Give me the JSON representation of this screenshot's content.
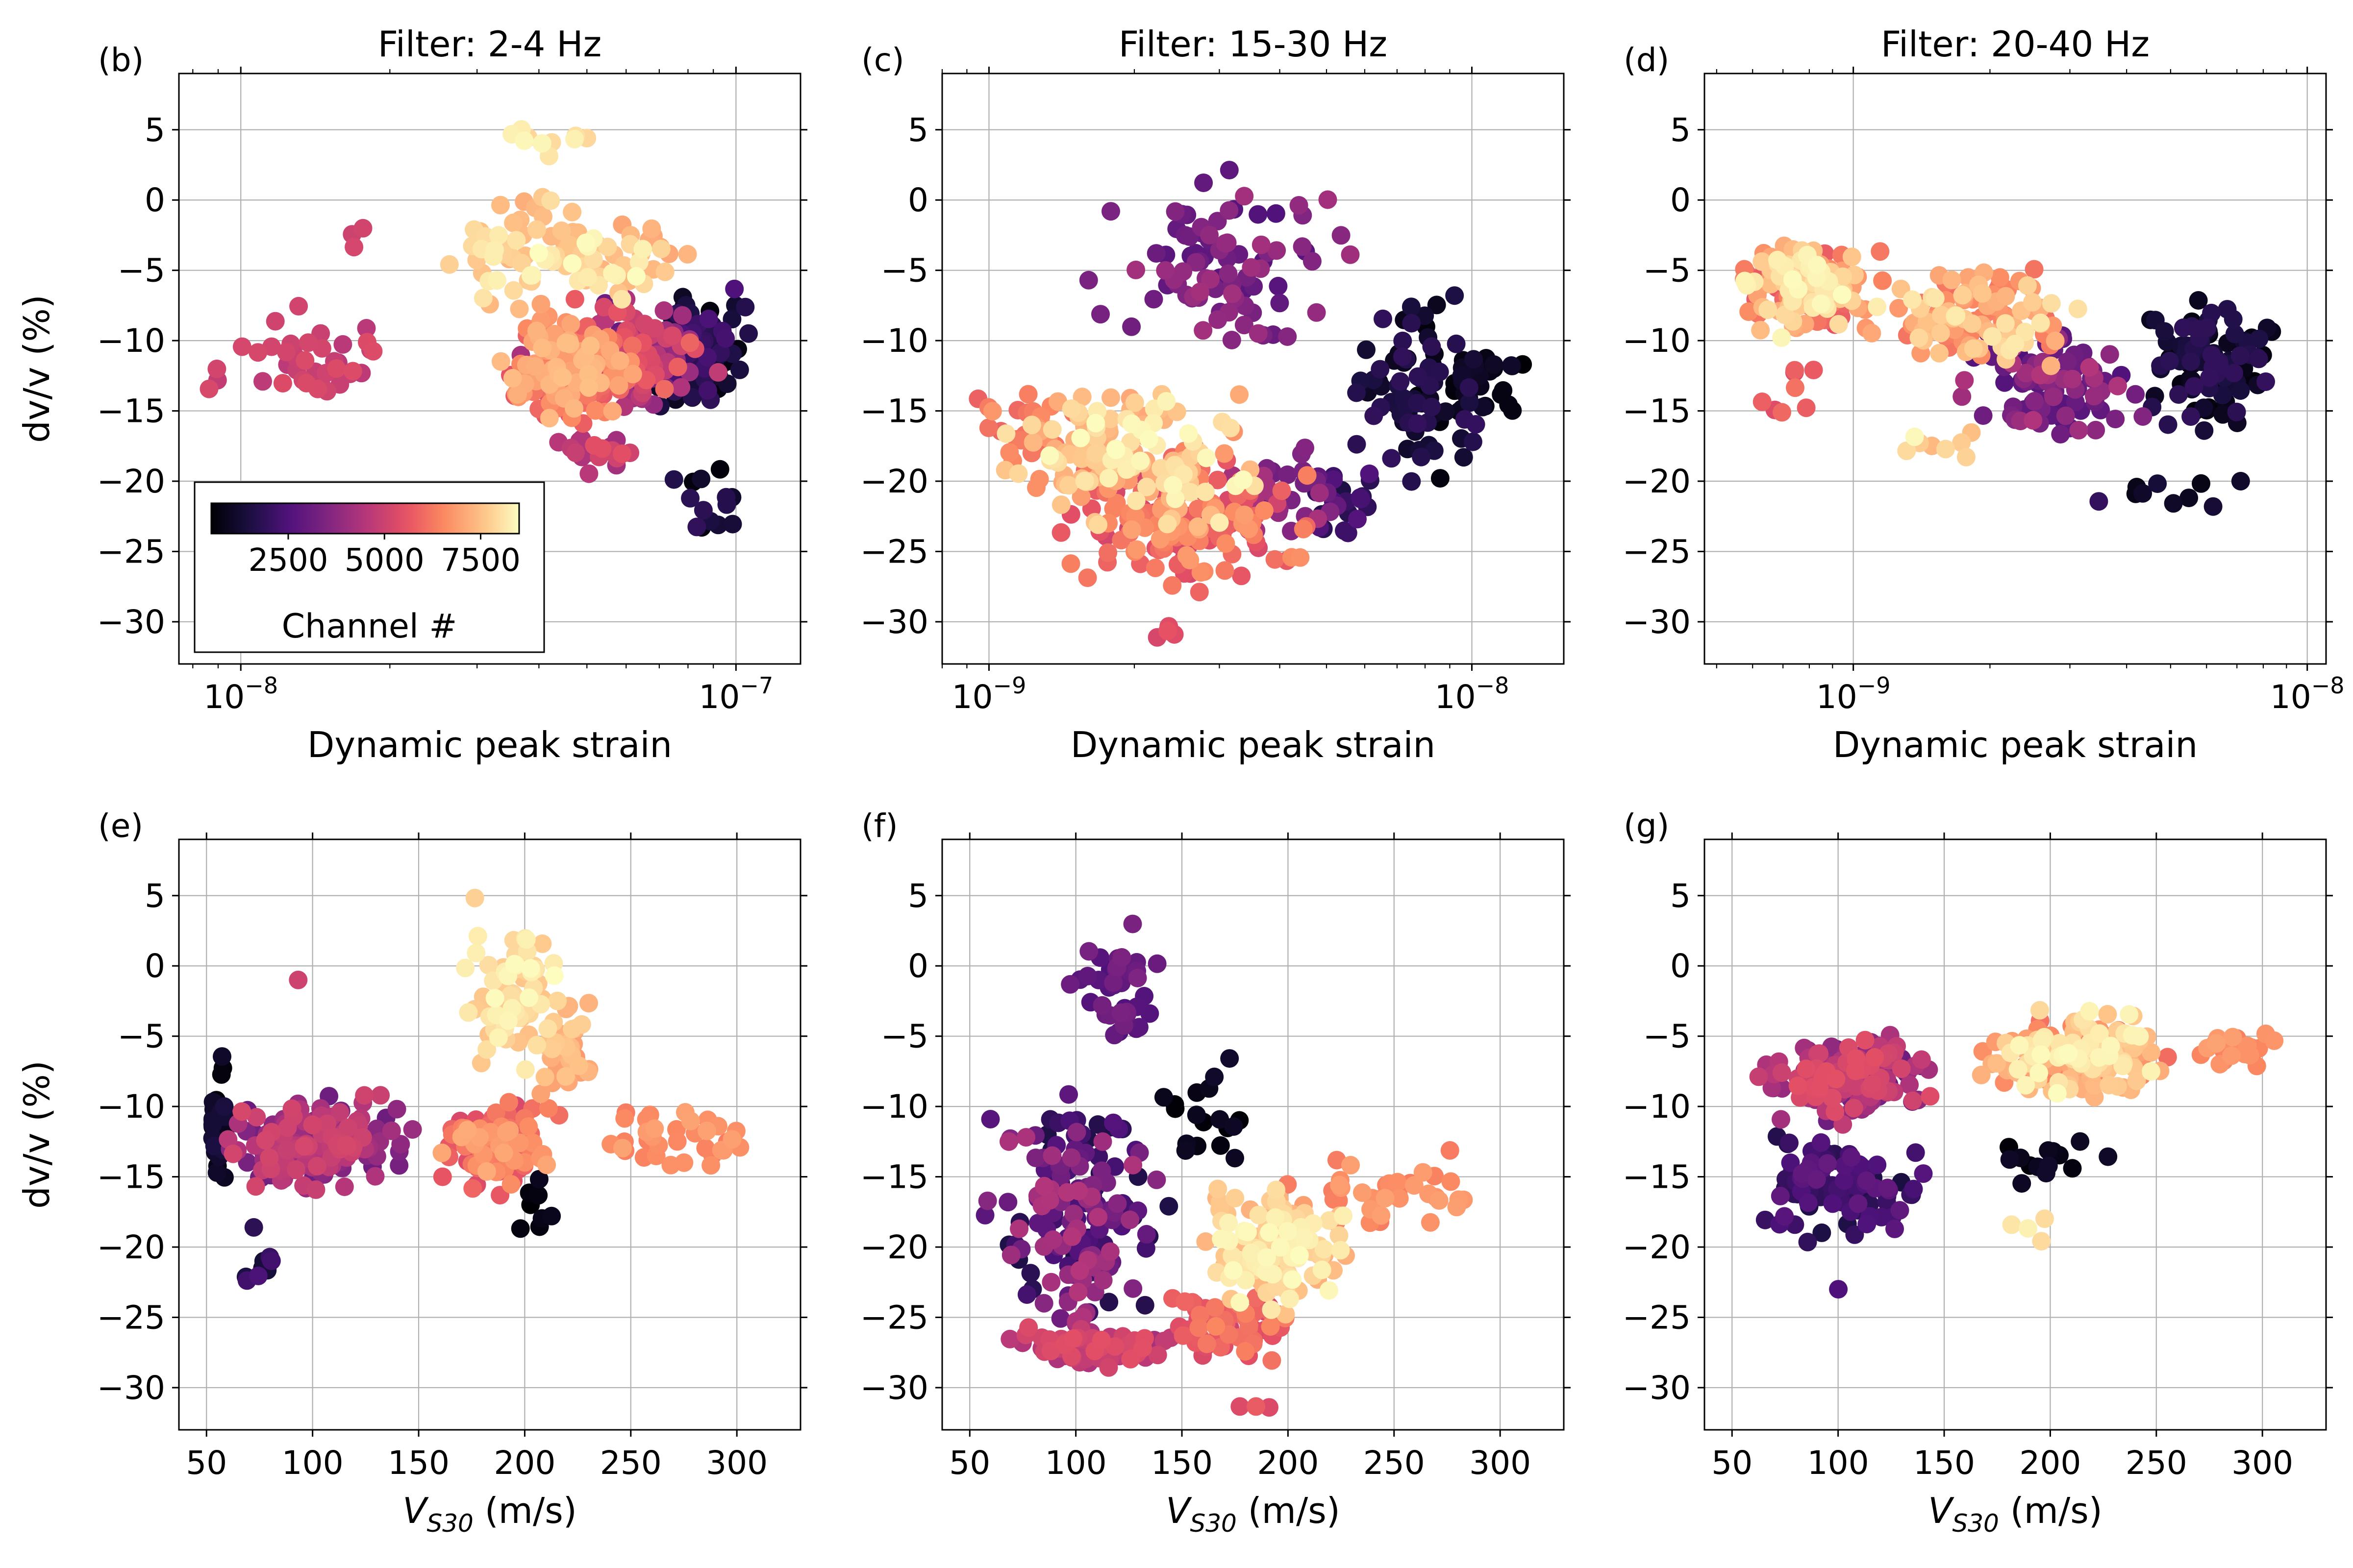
{
  "chart_data": [
    {
      "panel": "(b)",
      "title": "Filter: 2-4 Hz",
      "type": "scatter",
      "xlabel": "Dynamic peak strain",
      "ylabel": "dv/v (%)",
      "xscale": "log",
      "xlim": [
        7.5e-09,
        1.35e-07
      ],
      "ylim": [
        -33,
        9
      ],
      "xticks": [
        1e-08,
        1e-07
      ],
      "xtick_labels": [
        "10",
        "10"
      ],
      "xtick_exponents": [
        "−8",
        "−7"
      ],
      "yticks": [
        5,
        0,
        -5,
        -10,
        -15,
        -20,
        -25,
        -30
      ],
      "ytick_labels": [
        "5",
        "0",
        "−5",
        "−10",
        "−15",
        "−20",
        "−25",
        "−30"
      ],
      "grid": true,
      "colorbar": {
        "cmap": "magma",
        "range": [
          500,
          8500
        ],
        "ticks": [
          2500,
          5000,
          7500
        ],
        "tick_labels": [
          "2500",
          "5000",
          "7500"
        ],
        "label": "Channel #",
        "placement": "lower-left inset"
      },
      "clusters": [
        {
          "x": [
            3.5e-08,
            1e-07
          ],
          "y": [
            -16,
            -6
          ],
          "c": [
            3000,
            6000
          ],
          "n": 160
        },
        {
          "x": [
            3e-08,
            7e-08
          ],
          "y": [
            -17,
            -7
          ],
          "c": [
            5500,
            7500
          ],
          "n": 170
        },
        {
          "x": [
            6e-08,
            1.15e-07
          ],
          "y": [
            -16,
            -5
          ],
          "c": [
            500,
            2500
          ],
          "n": 110
        },
        {
          "x": [
            7e-08,
            1.1e-07
          ],
          "y": [
            -25,
            -16
          ],
          "c": [
            500,
            2000
          ],
          "n": 14
        },
        {
          "x": [
            3e-08,
            1e-07
          ],
          "y": [
            -8,
            0
          ],
          "c": [
            7000,
            8500
          ],
          "n": 50
        },
        {
          "x": [
            2e-08,
            6e-08
          ],
          "y": [
            -8,
            1
          ],
          "c": [
            7200,
            8400
          ],
          "n": 45
        },
        {
          "x": [
            2.5e-08,
            7e-08
          ],
          "y": [
            2,
            7
          ],
          "c": [
            7800,
            8500
          ],
          "n": 10
        },
        {
          "x": [
            8e-09,
            2.5e-08
          ],
          "y": [
            -16,
            -7
          ],
          "c": [
            4600,
            5400
          ],
          "n": 40
        },
        {
          "x": [
            1.6e-08,
            1.8e-08
          ],
          "y": [
            -5,
            0
          ],
          "c": [
            4800,
            5200
          ],
          "n": 3
        },
        {
          "x": [
            4e-08,
            7e-08
          ],
          "y": [
            -20,
            -15
          ],
          "c": [
            4000,
            5500
          ],
          "n": 18
        }
      ]
    },
    {
      "panel": "(c)",
      "title": "Filter: 15-30 Hz",
      "type": "scatter",
      "xlabel": "Dynamic peak strain",
      "ylabel": "",
      "xscale": "log",
      "xlim": [
        8e-10,
        1.55e-08
      ],
      "ylim": [
        -33,
        9
      ],
      "xticks": [
        1e-09,
        1e-08
      ],
      "xtick_labels": [
        "10",
        "10"
      ],
      "xtick_exponents": [
        "−9",
        "−8"
      ],
      "yticks": [
        5,
        0,
        -5,
        -10,
        -15,
        -20,
        -25,
        -30
      ],
      "ytick_labels": [
        "5",
        "0",
        "−5",
        "−10",
        "−15",
        "−20",
        "−25",
        "−30"
      ],
      "grid": true,
      "clusters": [
        {
          "x": [
            1.2e-09,
            5.5e-09
          ],
          "y": [
            -30,
            -16
          ],
          "c": [
            5000,
            7000
          ],
          "n": 170
        },
        {
          "x": [
            1e-09,
            4e-09
          ],
          "y": [
            -25,
            -12
          ],
          "c": [
            7000,
            8500
          ],
          "n": 140
        },
        {
          "x": [
            9e-10,
            1.6e-09
          ],
          "y": [
            -22,
            -10
          ],
          "c": [
            5800,
            6800
          ],
          "n": 30
        },
        {
          "x": [
            1.5e-09,
            6e-09
          ],
          "y": [
            -14,
            4
          ],
          "c": [
            2500,
            4200
          ],
          "n": 90
        },
        {
          "x": [
            5e-09,
            1.2e-08
          ],
          "y": [
            -22,
            -5
          ],
          "c": [
            500,
            2000
          ],
          "n": 80
        },
        {
          "x": [
            8e-09,
            1.4e-08
          ],
          "y": [
            -17,
            -9
          ],
          "c": [
            500,
            1200
          ],
          "n": 28
        },
        {
          "x": [
            2.5e-09,
            6e-09
          ],
          "y": [
            -27,
            -16
          ],
          "c": [
            3000,
            4500
          ],
          "n": 35
        },
        {
          "x": [
            2e-09,
            3e-09
          ],
          "y": [
            -32,
            -30
          ],
          "c": [
            5200,
            5600
          ],
          "n": 4
        },
        {
          "x": [
            4e-09,
            7e-09
          ],
          "y": [
            -25,
            -18
          ],
          "c": [
            1500,
            3000
          ],
          "n": 22
        }
      ]
    },
    {
      "panel": "(d)",
      "title": "Filter: 20-40 Hz",
      "type": "scatter",
      "xlabel": "Dynamic peak strain",
      "ylabel": "",
      "xscale": "log",
      "xlim": [
        4.7e-10,
        1.1e-08
      ],
      "ylim": [
        -33,
        9
      ],
      "xticks": [
        1e-09,
        1e-08
      ],
      "xtick_labels": [
        "10",
        "10"
      ],
      "xtick_exponents": [
        "−9",
        "−8"
      ],
      "yticks": [
        5,
        0,
        -5,
        -10,
        -15,
        -20,
        -25,
        -30
      ],
      "ytick_labels": [
        "5",
        "0",
        "−5",
        "−10",
        "−15",
        "−20",
        "−25",
        "−30"
      ],
      "grid": true,
      "clusters": [
        {
          "x": [
            5.2e-10,
            1.2e-09
          ],
          "y": [
            -10,
            -2
          ],
          "c": [
            5500,
            8500
          ],
          "n": 170
        },
        {
          "x": [
            1e-09,
            3.5e-09
          ],
          "y": [
            -13,
            -4
          ],
          "c": [
            6000,
            8200
          ],
          "n": 120
        },
        {
          "x": [
            1.5e-09,
            5e-09
          ],
          "y": [
            -18,
            -8
          ],
          "c": [
            2500,
            4500
          ],
          "n": 90
        },
        {
          "x": [
            4e-09,
            9.5e-09
          ],
          "y": [
            -18,
            -6
          ],
          "c": [
            500,
            2000
          ],
          "n": 110
        },
        {
          "x": [
            3e-09,
            8e-09
          ],
          "y": [
            -23,
            -18
          ],
          "c": [
            800,
            2000
          ],
          "n": 10
        },
        {
          "x": [
            1e-09,
            2.5e-09
          ],
          "y": [
            -20,
            -15
          ],
          "c": [
            7200,
            8500
          ],
          "n": 8
        },
        {
          "x": [
            6e-10,
            1e-09
          ],
          "y": [
            -17,
            -11
          ],
          "c": [
            5200,
            6200
          ],
          "n": 8
        }
      ]
    },
    {
      "panel": "(e)",
      "title": "",
      "type": "scatter",
      "xlabel": "V_S30 (m/s)",
      "ylabel": "dv/v (%)",
      "xscale": "linear",
      "xlim": [
        37,
        330
      ],
      "ylim": [
        -33,
        9
      ],
      "xticks": [
        50,
        100,
        150,
        200,
        250,
        300
      ],
      "xtick_labels": [
        "50",
        "100",
        "150",
        "200",
        "250",
        "300"
      ],
      "yticks": [
        5,
        0,
        -5,
        -10,
        -15,
        -20,
        -25,
        -30
      ],
      "ytick_labels": [
        "5",
        "0",
        "−5",
        "−10",
        "−15",
        "−20",
        "−25",
        "−30"
      ],
      "grid": true,
      "clusters": [
        {
          "x": [
            52,
            150
          ],
          "y": [
            -17,
            -8
          ],
          "c": [
            3000,
            5200
          ],
          "n": 220
        },
        {
          "x": [
            50,
            60
          ],
          "y": [
            -17,
            -5
          ],
          "c": [
            500,
            1500
          ],
          "n": 30
        },
        {
          "x": [
            55,
            95
          ],
          "y": [
            -25,
            -16
          ],
          "c": [
            1200,
            2500
          ],
          "n": 10
        },
        {
          "x": [
            150,
            225
          ],
          "y": [
            -17,
            -8
          ],
          "c": [
            5200,
            7200
          ],
          "n": 100
        },
        {
          "x": [
            160,
            230
          ],
          "y": [
            -10,
            7
          ],
          "c": [
            7500,
            8500
          ],
          "n": 70
        },
        {
          "x": [
            200,
            240
          ],
          "y": [
            -11,
            -1
          ],
          "c": [
            6800,
            7800
          ],
          "n": 40
        },
        {
          "x": [
            225,
            315
          ],
          "y": [
            -15,
            -9
          ],
          "c": [
            6300,
            7000
          ],
          "n": 35
        },
        {
          "x": [
            190,
            220
          ],
          "y": [
            -23,
            -11
          ],
          "c": [
            500,
            1000
          ],
          "n": 8
        },
        {
          "x": [
            90,
            100
          ],
          "y": [
            -1,
            -1
          ],
          "c": [
            5000,
            5000
          ],
          "n": 1
        }
      ]
    },
    {
      "panel": "(f)",
      "title": "",
      "type": "scatter",
      "xlabel": "V_S30 (m/s)",
      "ylabel": "",
      "xscale": "linear",
      "xlim": [
        37,
        330
      ],
      "ylim": [
        -33,
        9
      ],
      "xticks": [
        50,
        100,
        150,
        200,
        250,
        300
      ],
      "xtick_labels": [
        "50",
        "100",
        "150",
        "200",
        "250",
        "300"
      ],
      "yticks": [
        5,
        0,
        -5,
        -10,
        -15,
        -20,
        -25,
        -30
      ],
      "ytick_labels": [
        "5",
        "0",
        "−5",
        "−10",
        "−15",
        "−20",
        "−25",
        "−30"
      ],
      "grid": true,
      "clusters": [
        {
          "x": [
            50,
            150
          ],
          "y": [
            -28,
            -7
          ],
          "c": [
            1500,
            4500
          ],
          "n": 180
        },
        {
          "x": [
            95,
            145
          ],
          "y": [
            -8,
            4
          ],
          "c": [
            2500,
            3500
          ],
          "n": 40
        },
        {
          "x": [
            60,
            160
          ],
          "y": [
            -29,
            -25
          ],
          "c": [
            4200,
            5500
          ],
          "n": 60
        },
        {
          "x": [
            150,
            240
          ],
          "y": [
            -26,
            -14
          ],
          "c": [
            7200,
            8500
          ],
          "n": 130
        },
        {
          "x": [
            180,
            315
          ],
          "y": [
            -20,
            -12
          ],
          "c": [
            6300,
            7000
          ],
          "n": 40
        },
        {
          "x": [
            130,
            210
          ],
          "y": [
            -29,
            -22
          ],
          "c": [
            5000,
            6500
          ],
          "n": 60
        },
        {
          "x": [
            130,
            195
          ],
          "y": [
            -17,
            -4
          ],
          "c": [
            500,
            1200
          ],
          "n": 18
        },
        {
          "x": [
            150,
            225
          ],
          "y": [
            -32,
            -31
          ],
          "c": [
            5300,
            5800
          ],
          "n": 3
        }
      ]
    },
    {
      "panel": "(g)",
      "title": "",
      "type": "scatter",
      "xlabel": "V_S30 (m/s)",
      "ylabel": "",
      "xscale": "linear",
      "xlim": [
        37,
        330
      ],
      "ylim": [
        -33,
        9
      ],
      "xticks": [
        50,
        100,
        150,
        200,
        250,
        300
      ],
      "xtick_labels": [
        "50",
        "100",
        "150",
        "200",
        "250",
        "300"
      ],
      "yticks": [
        5,
        0,
        -5,
        -10,
        -15,
        -20,
        -25,
        -30
      ],
      "ytick_labels": [
        "5",
        "0",
        "−5",
        "−10",
        "−15",
        "−20",
        "−25",
        "−30"
      ],
      "grid": true,
      "clusters": [
        {
          "x": [
            55,
            150
          ],
          "y": [
            -12,
            -4
          ],
          "c": [
            3000,
            5500
          ],
          "n": 170
        },
        {
          "x": [
            50,
            150
          ],
          "y": [
            -20,
            -11
          ],
          "c": [
            1500,
            3000
          ],
          "n": 110
        },
        {
          "x": [
            150,
            270
          ],
          "y": [
            -10,
            -3
          ],
          "c": [
            6000,
            7500
          ],
          "n": 110
        },
        {
          "x": [
            170,
            260
          ],
          "y": [
            -10,
            -2
          ],
          "c": [
            7500,
            8500
          ],
          "n": 80
        },
        {
          "x": [
            260,
            315
          ],
          "y": [
            -8,
            -4
          ],
          "c": [
            6300,
            7000
          ],
          "n": 20
        },
        {
          "x": [
            160,
            235
          ],
          "y": [
            -16,
            -11
          ],
          "c": [
            500,
            1200
          ],
          "n": 14
        },
        {
          "x": [
            180,
            210
          ],
          "y": [
            -20,
            -17
          ],
          "c": [
            7800,
            8400
          ],
          "n": 4
        },
        {
          "x": [
            95,
            105
          ],
          "y": [
            -23,
            -23
          ],
          "c": [
            2500,
            2500
          ],
          "n": 1
        }
      ]
    }
  ]
}
